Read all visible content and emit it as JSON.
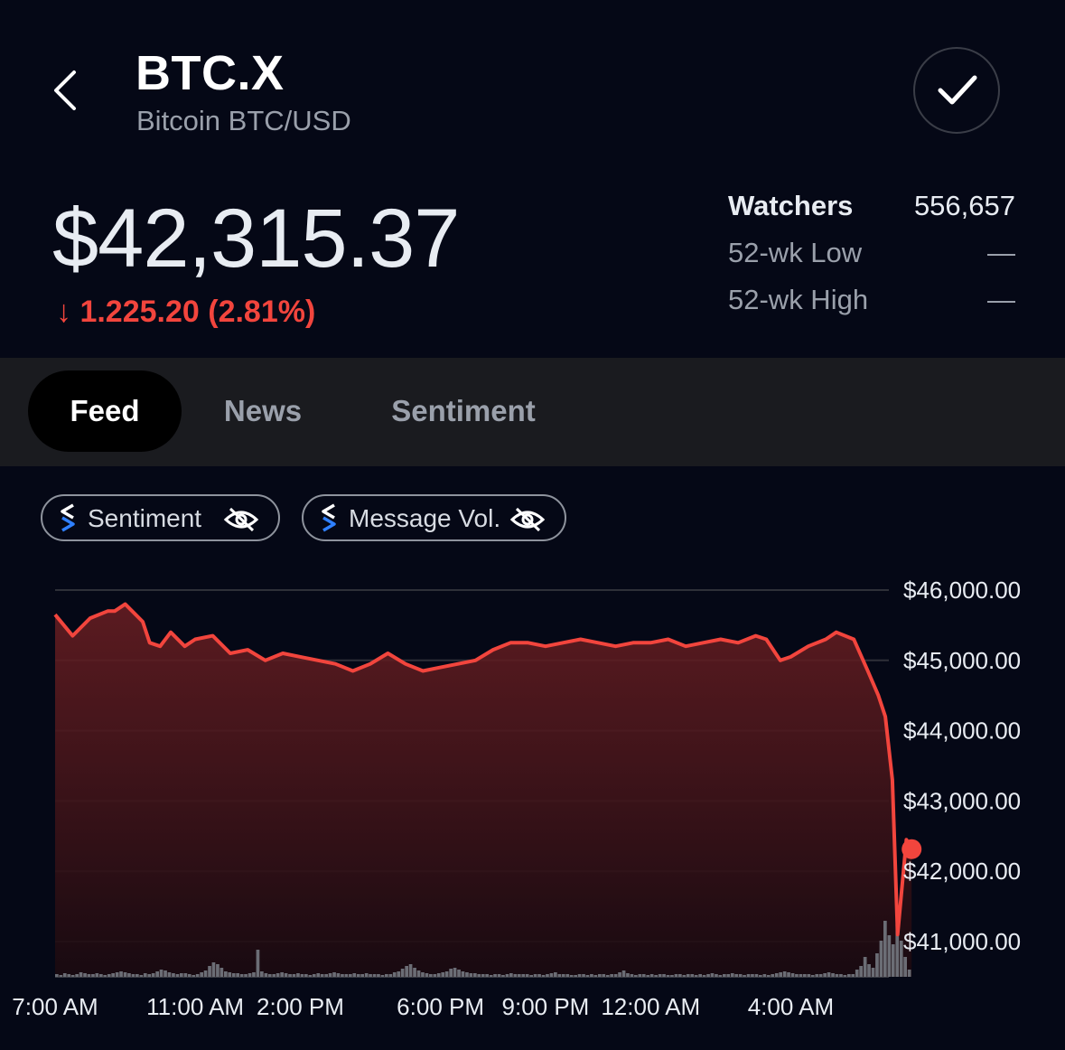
{
  "header": {
    "back_icon": "chevron-left-icon",
    "ticker": "BTC.X",
    "subtitle": "Bitcoin BTC/USD",
    "watch_icon": "checkmark-icon"
  },
  "price": {
    "value": "$42,315.37",
    "change": "↓ 1.225.20 (2.81%)",
    "change_color": "#f2453d"
  },
  "stats": {
    "watchers_label": "Watchers",
    "watchers_value": "556,657",
    "low_label": "52-wk Low",
    "low_value": "—",
    "high_label": "52-wk High",
    "high_value": "—"
  },
  "tabs": [
    {
      "label": "Feed",
      "active": true
    },
    {
      "label": "News",
      "active": false
    },
    {
      "label": "Sentiment",
      "active": false
    }
  ],
  "chips": [
    {
      "label": "Sentiment",
      "icon": "eye-off-icon"
    },
    {
      "label": "Message Vol.",
      "icon": "eye-off-icon"
    }
  ],
  "colors": {
    "background": "#050816",
    "line": "#f2453d",
    "logo_blue": "#2f80ff"
  },
  "chart_data": {
    "type": "line",
    "ylim": [
      40500,
      46000
    ],
    "y_ticks": [
      46000,
      45000,
      44000,
      43000,
      42000,
      41000
    ],
    "y_tick_labels": [
      "$46,000.00",
      "$45,000.00",
      "$44,000.00",
      "$43,000.00",
      "$42,000.00",
      "$41,000.00"
    ],
    "x_tick_labels": [
      "7:00 AM",
      "11:00 AM",
      "2:00 PM",
      "6:00 PM",
      "9:00 PM",
      "12:00 AM",
      "4:00 AM"
    ],
    "x_tick_hours": [
      0,
      4,
      7,
      11,
      14,
      17,
      21
    ],
    "xlim_hours": [
      0,
      23.8
    ],
    "series": [
      {
        "points": [
          [
            0,
            45650
          ],
          [
            0.5,
            45350
          ],
          [
            1.0,
            45600
          ],
          [
            1.5,
            45700
          ],
          [
            1.7,
            45700
          ],
          [
            2.0,
            45800
          ],
          [
            2.3,
            45650
          ],
          [
            2.5,
            45550
          ],
          [
            2.7,
            45250
          ],
          [
            3.0,
            45200
          ],
          [
            3.3,
            45400
          ],
          [
            3.7,
            45200
          ],
          [
            4.0,
            45300
          ],
          [
            4.5,
            45350
          ],
          [
            5.0,
            45100
          ],
          [
            5.5,
            45150
          ],
          [
            6.0,
            45000
          ],
          [
            6.5,
            45100
          ],
          [
            7.0,
            45050
          ],
          [
            7.5,
            45000
          ],
          [
            8.0,
            44950
          ],
          [
            8.5,
            44850
          ],
          [
            9.0,
            44950
          ],
          [
            9.5,
            45100
          ],
          [
            10.0,
            44950
          ],
          [
            10.5,
            44850
          ],
          [
            11.0,
            44900
          ],
          [
            11.5,
            44950
          ],
          [
            12.0,
            45000
          ],
          [
            12.5,
            45150
          ],
          [
            13.0,
            45250
          ],
          [
            13.5,
            45250
          ],
          [
            14.0,
            45200
          ],
          [
            14.5,
            45250
          ],
          [
            15.0,
            45300
          ],
          [
            15.5,
            45250
          ],
          [
            16.0,
            45200
          ],
          [
            16.5,
            45250
          ],
          [
            17.0,
            45250
          ],
          [
            17.5,
            45300
          ],
          [
            18.0,
            45200
          ],
          [
            18.5,
            45250
          ],
          [
            19.0,
            45300
          ],
          [
            19.5,
            45250
          ],
          [
            20.0,
            45350
          ],
          [
            20.3,
            45300
          ],
          [
            20.7,
            45000
          ],
          [
            21.0,
            45050
          ],
          [
            21.5,
            45200
          ],
          [
            22.0,
            45300
          ],
          [
            22.3,
            45400
          ],
          [
            22.8,
            45300
          ],
          [
            23.2,
            44850
          ],
          [
            23.5,
            44500
          ],
          [
            23.7,
            44200
          ],
          [
            23.9,
            43300
          ],
          [
            24.05,
            41100
          ],
          [
            24.3,
            42450
          ],
          [
            24.45,
            42315
          ]
        ]
      }
    ],
    "volume_series": {
      "name": "Message Vol.",
      "values": [
        3,
        2,
        4,
        3,
        2,
        3,
        5,
        4,
        3,
        3,
        4,
        3,
        2,
        3,
        4,
        5,
        6,
        5,
        4,
        3,
        3,
        2,
        4,
        3,
        4,
        6,
        8,
        7,
        5,
        4,
        3,
        4,
        4,
        3,
        2,
        3,
        5,
        7,
        12,
        16,
        14,
        10,
        6,
        5,
        4,
        4,
        3,
        3,
        4,
        5,
        30,
        6,
        4,
        3,
        3,
        4,
        5,
        4,
        3,
        3,
        4,
        3,
        3,
        2,
        3,
        4,
        3,
        3,
        4,
        5,
        4,
        3,
        3,
        3,
        4,
        3,
        3,
        4,
        3,
        3,
        3,
        2,
        3,
        3,
        5,
        6,
        9,
        12,
        14,
        10,
        7,
        5,
        4,
        3,
        3,
        4,
        5,
        6,
        9,
        10,
        8,
        6,
        5,
        4,
        4,
        3,
        3,
        3,
        2,
        3,
        3,
        2,
        3,
        4,
        3,
        3,
        3,
        3,
        2,
        3,
        3,
        2,
        3,
        4,
        5,
        3,
        3,
        3,
        2,
        2,
        3,
        3,
        2,
        3,
        2,
        3,
        3,
        2,
        3,
        3,
        5,
        7,
        4,
        3,
        2,
        3,
        3,
        2,
        3,
        2,
        3,
        3,
        2,
        2,
        3,
        3,
        2,
        3,
        3,
        2,
        3,
        2,
        3,
        4,
        3,
        2,
        3,
        3,
        4,
        3,
        3,
        2,
        3,
        3,
        3,
        2,
        3,
        2,
        3,
        4,
        5,
        6,
        5,
        4,
        3,
        3,
        3,
        3,
        2,
        3,
        3,
        4,
        5,
        4,
        3,
        3,
        2,
        3,
        3,
        8,
        12,
        22,
        14,
        10,
        26,
        40,
        62,
        46,
        36,
        58,
        40,
        22,
        8
      ]
    }
  }
}
